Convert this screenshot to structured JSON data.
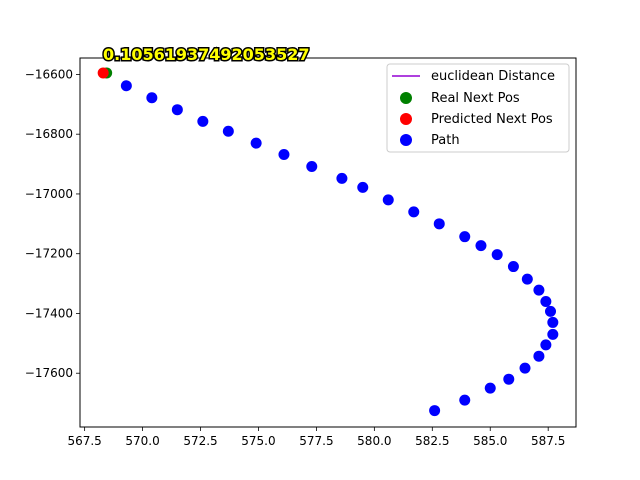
{
  "chart_data": {
    "type": "scatter",
    "title": "",
    "xlabel": "",
    "ylabel": "",
    "xlim": [
      567.3,
      588.7
    ],
    "ylim": [
      -17780,
      -16545
    ],
    "x_ticks": [
      567.5,
      570.0,
      572.5,
      575.0,
      577.5,
      580.0,
      582.5,
      585.0,
      587.5
    ],
    "x_tick_labels": [
      "567.5",
      "570.0",
      "572.5",
      "575.0",
      "577.5",
      "580.0",
      "582.5",
      "585.0",
      "587.5"
    ],
    "y_ticks": [
      -16600,
      -16800,
      -17000,
      -17200,
      -17400,
      -17600
    ],
    "y_tick_labels": [
      "−16600",
      "−16800",
      "−17000",
      "−17200",
      "−17400",
      "−17600"
    ],
    "grid": false,
    "legend_position": "top-right",
    "annotation": "0.10561937492053527",
    "series": [
      {
        "name": "euclidean Distance",
        "kind": "line",
        "color": "#9400d3",
        "points": [
          [
            568.45,
            -16595
          ],
          [
            568.3,
            -16595
          ]
        ]
      },
      {
        "name": "Real Next Pos",
        "kind": "scatter",
        "color": "#008000",
        "points": [
          [
            568.45,
            -16595
          ]
        ]
      },
      {
        "name": "Predicted Next Pos",
        "kind": "scatter",
        "color": "#ff0000",
        "points": [
          [
            568.3,
            -16595
          ]
        ]
      },
      {
        "name": "Path",
        "kind": "scatter",
        "color": "#0000ff",
        "points": [
          [
            582.6,
            -17725
          ],
          [
            583.9,
            -17690
          ],
          [
            585.0,
            -17650
          ],
          [
            585.8,
            -17620
          ],
          [
            586.5,
            -17583
          ],
          [
            587.1,
            -17543
          ],
          [
            587.4,
            -17505
          ],
          [
            587.7,
            -17470
          ],
          [
            587.7,
            -17430
          ],
          [
            587.6,
            -17393
          ],
          [
            587.4,
            -17360
          ],
          [
            587.1,
            -17322
          ],
          [
            586.6,
            -17285
          ],
          [
            586.0,
            -17243
          ],
          [
            585.3,
            -17203
          ],
          [
            584.6,
            -17173
          ],
          [
            583.9,
            -17143
          ],
          [
            582.8,
            -17100
          ],
          [
            581.7,
            -17060
          ],
          [
            580.6,
            -17020
          ],
          [
            579.5,
            -16978
          ],
          [
            578.6,
            -16948
          ],
          [
            577.3,
            -16908
          ],
          [
            576.1,
            -16868
          ],
          [
            574.9,
            -16830
          ],
          [
            573.7,
            -16790
          ],
          [
            572.6,
            -16757
          ],
          [
            571.5,
            -16718
          ],
          [
            570.4,
            -16678
          ],
          [
            569.3,
            -16638
          ]
        ]
      }
    ]
  }
}
